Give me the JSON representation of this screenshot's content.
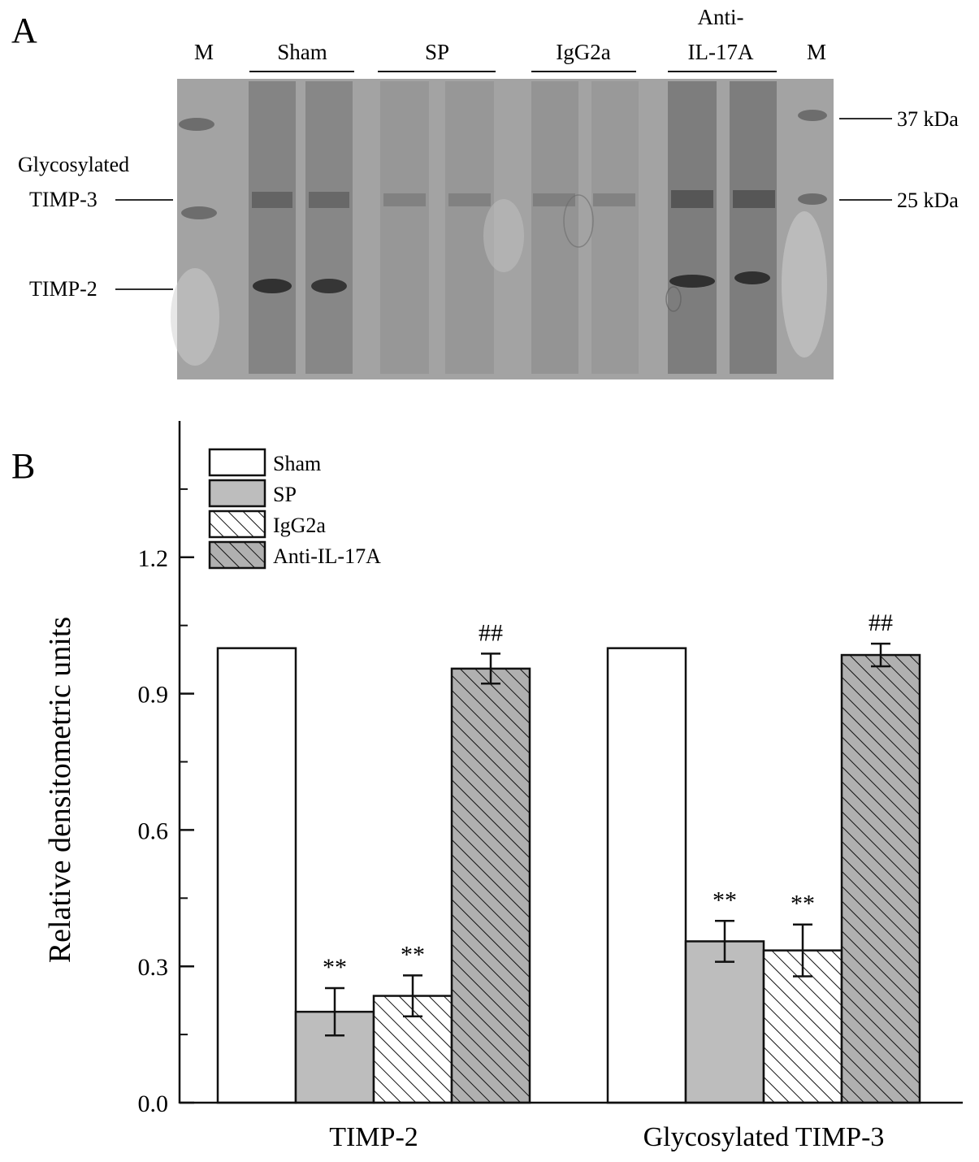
{
  "panel_a": {
    "letter": "A",
    "marker_left": "M",
    "marker_right": "M",
    "groups": [
      "Sham",
      "SP",
      "IgG2a"
    ],
    "anti_line1": "Anti-",
    "anti_line2": "IL-17A",
    "band_glyco_line1": "Glycosylated",
    "band_glyco_line2": "TIMP-3",
    "band_timp2": "TIMP-2",
    "mw_37": "37 kDa",
    "mw_25": "25 kDa"
  },
  "panel_b": {
    "letter": "B"
  },
  "chart_data": {
    "type": "bar",
    "title": "",
    "xlabel": "",
    "ylabel": "Relative densitometric units",
    "ylim": [
      0,
      1.5
    ],
    "yticks": [
      0.0,
      0.3,
      0.6,
      0.9,
      1.2
    ],
    "ytick_labels": [
      "0.0",
      "0.3",
      "0.6",
      "0.9",
      "1.2"
    ],
    "categories": [
      "TIMP-2",
      "Glycosylated TIMP-3"
    ],
    "series": [
      {
        "name": "Sham",
        "values": [
          1.0,
          1.0
        ],
        "errors": [
          0,
          0
        ],
        "annotations": [
          "",
          ""
        ],
        "fill": "#ffffff",
        "hatch": false
      },
      {
        "name": "SP",
        "values": [
          0.2,
          0.355
        ],
        "errors": [
          0.052,
          0.045
        ],
        "annotations": [
          "**",
          "**"
        ],
        "fill": "#bdbdbd",
        "hatch": false
      },
      {
        "name": "IgG2a",
        "values": [
          0.235,
          0.335
        ],
        "errors": [
          0.045,
          0.057
        ],
        "annotations": [
          "**",
          "**"
        ],
        "fill": "#ffffff",
        "hatch": true
      },
      {
        "name": "Anti-IL-17A",
        "values": [
          0.955,
          0.985
        ],
        "errors": [
          0.033,
          0.025
        ],
        "annotations": [
          "##",
          "##"
        ],
        "fill": "#b0b0b0",
        "hatch": true
      }
    ],
    "legend_position": "top-left",
    "grid": false
  }
}
